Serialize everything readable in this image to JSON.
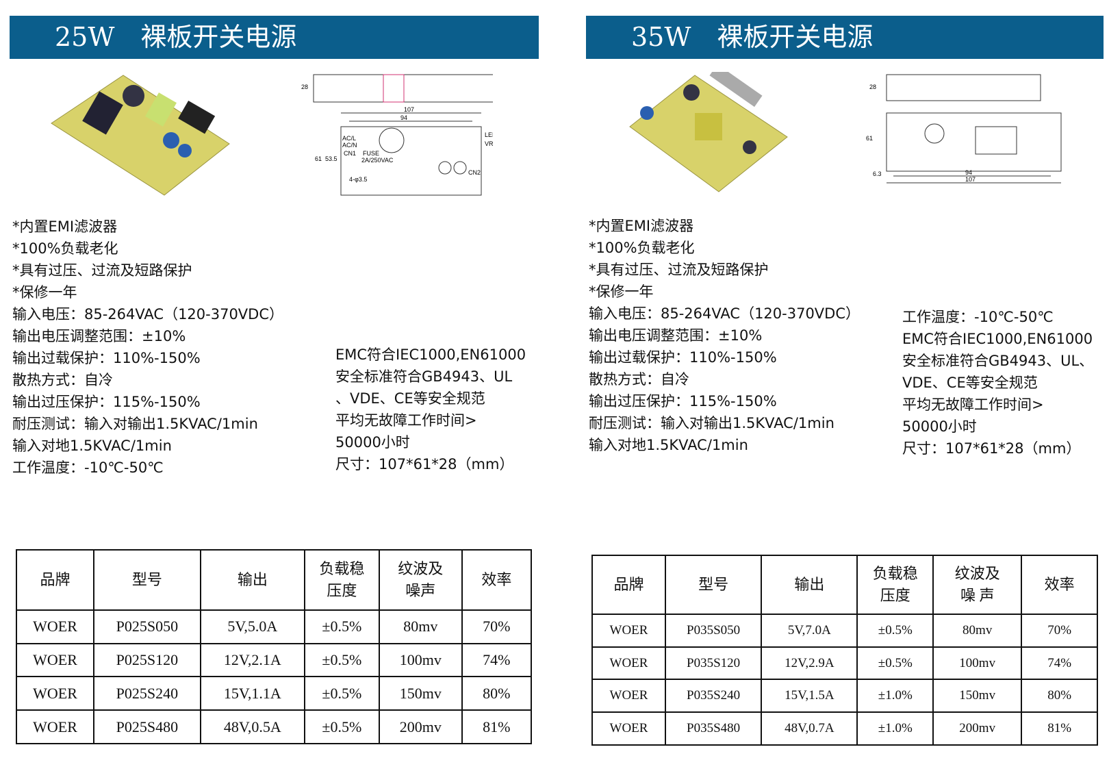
{
  "left": {
    "title": "25W　裸板开关电源",
    "features": [
      "*内置EMI滤波器",
      "*100%负载老化",
      "*具有过压、过流及短路保护",
      "*保修一年",
      "输入电压：85-264VAC（120-370VDC）",
      "输出电压调整范围：±10%",
      "输出过载保护：110%-150%",
      "散热方式：自冷",
      "输出过压保护：115%-150%",
      "耐压测试：输入对输出1.5KVAC/1min",
      "输入对地1.5KVAC/1min",
      "工作温度：-10℃-50℃"
    ],
    "features2": [
      "EMC符合IEC1000,EN61000",
      "安全标准符合GB4943、UL",
      "、VDE、CE等安全规范",
      "平均无故障工作时间>",
      "50000小时",
      "尺寸：107*61*28（mm）"
    ],
    "drawing_labels": {
      "w1": "107",
      "w2": "94",
      "h1": "61",
      "h2": "53.5",
      "h3": "28",
      "acl": "AC/L",
      "acn": "AC/N",
      "cn1": "CN1",
      "fuse": "FUSE",
      "fuse_rating": "2A/250VAC",
      "led": "LED",
      "vr": "VR",
      "cn2": "CN2",
      "holes": "4-φ3.5"
    },
    "table": {
      "headers": [
        "品牌",
        "型号",
        "输出",
        "负载稳\n压度",
        "纹波及\n噪声",
        "效率"
      ],
      "rows": [
        [
          "WOER",
          "P025S050",
          "5V,5.0A",
          "±0.5%",
          "80mv",
          "70%"
        ],
        [
          "WOER",
          "P025S120",
          "12V,2.1A",
          "±0.5%",
          "100mv",
          "74%"
        ],
        [
          "WOER",
          "P025S240",
          "15V,1.1A",
          "±0.5%",
          "150mv",
          "80%"
        ],
        [
          "WOER",
          "P025S480",
          "48V,0.5A",
          "±0.5%",
          "200mv",
          "81%"
        ]
      ]
    }
  },
  "right": {
    "title": "35W　裸板开关电源",
    "features": [
      "*内置EMI滤波器",
      "*100%负载老化",
      "*具有过压、过流及短路保护",
      "*保修一年",
      "输入电压：85-264VAC（120-370VDC）",
      "输出电压调整范围：±10%",
      "输出过载保护：110%-150%",
      "散热方式：自冷",
      "输出过压保护：115%-150%",
      "耐压测试：输入对输出1.5KVAC/1min",
      "输入对地1.5KVAC/1min"
    ],
    "features2": [
      "工作温度：-10℃-50℃",
      "EMC符合IEC1000,EN61000",
      "安全标准符合GB4943、UL、",
      "VDE、CE等安全规范",
      "平均无故障工作时间>",
      "50000小时",
      "尺寸：107*61*28（mm）"
    ],
    "drawing_labels": {
      "w1": "107",
      "w2": "94",
      "h1": "61",
      "h3": "28",
      "offset": "6.3"
    },
    "table": {
      "headers": [
        "品牌",
        "型号",
        "输出",
        "负载稳\n压度",
        "纹波及\n噪 声",
        "效率"
      ],
      "rows": [
        [
          "WOER",
          "P035S050",
          "5V,7.0A",
          "±0.5%",
          "80mv",
          "70%"
        ],
        [
          "WOER",
          "P035S120",
          "12V,2.9A",
          "±0.5%",
          "100mv",
          "74%"
        ],
        [
          "WOER",
          "P035S240",
          "15V,1.5A",
          "±1.0%",
          "150mv",
          "80%"
        ],
        [
          "WOER",
          "P035S480",
          "48V,0.7A",
          "±1.0%",
          "200mv",
          "81%"
        ]
      ]
    }
  },
  "colors": {
    "header": "#0b5e8c",
    "pcb": "#d8d26a"
  }
}
